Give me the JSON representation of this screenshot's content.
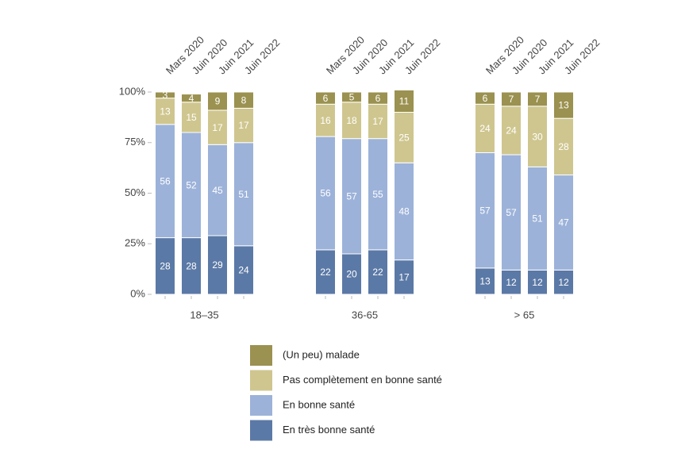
{
  "chart_data": [
    {
      "type": "bar",
      "xlabel": "18–35",
      "categories": [
        "Mars 2020",
        "Juin 2020",
        "Juin 2021",
        "Juin 2022"
      ],
      "ylim": [
        0,
        100
      ],
      "yticks": [
        {
          "value": 0,
          "label": "0%"
        },
        {
          "value": 25,
          "label": "25%"
        },
        {
          "value": 50,
          "label": "50%"
        },
        {
          "value": 75,
          "label": "75%"
        },
        {
          "value": 100,
          "label": "100%"
        }
      ],
      "series": [
        {
          "name": "En très bonne santé",
          "color": "#5b79a6",
          "values": [
            28,
            28,
            29,
            24
          ]
        },
        {
          "name": "En bonne santé",
          "color": "#9cb2d9",
          "values": [
            56,
            52,
            45,
            51
          ]
        },
        {
          "name": "Pas complètement en bonne santé",
          "color": "#cfc68f",
          "values": [
            13,
            15,
            17,
            17
          ]
        },
        {
          "name": "(Un peu) malade",
          "color": "#9b9150",
          "values": [
            3,
            4,
            9,
            8
          ]
        }
      ]
    },
    {
      "type": "bar",
      "xlabel": "36-65",
      "categories": [
        "Mars 2020",
        "Juin 2020",
        "Juin 2021",
        "Juin 2022"
      ],
      "ylim": [
        0,
        100
      ],
      "series": [
        {
          "color": "#5b79a6",
          "values": [
            22,
            20,
            22,
            17
          ]
        },
        {
          "color": "#9cb2d9",
          "values": [
            56,
            57,
            55,
            48
          ]
        },
        {
          "color": "#cfc68f",
          "values": [
            16,
            18,
            17,
            25
          ]
        },
        {
          "color": "#9b9150",
          "values": [
            6,
            5,
            6,
            11
          ]
        }
      ]
    },
    {
      "type": "bar",
      "xlabel": "> 65",
      "categories": [
        "Mars 2020",
        "Juin 2020",
        "Juin 2021",
        "Juin 2022"
      ],
      "ylim": [
        0,
        100
      ],
      "series": [
        {
          "color": "#5b79a6",
          "values": [
            13,
            12,
            12,
            12
          ]
        },
        {
          "color": "#9cb2d9",
          "values": [
            57,
            57,
            51,
            47
          ]
        },
        {
          "color": "#cfc68f",
          "values": [
            24,
            24,
            30,
            28
          ]
        },
        {
          "color": "#9b9150",
          "values": [
            6,
            7,
            7,
            13
          ]
        }
      ]
    }
  ]
}
